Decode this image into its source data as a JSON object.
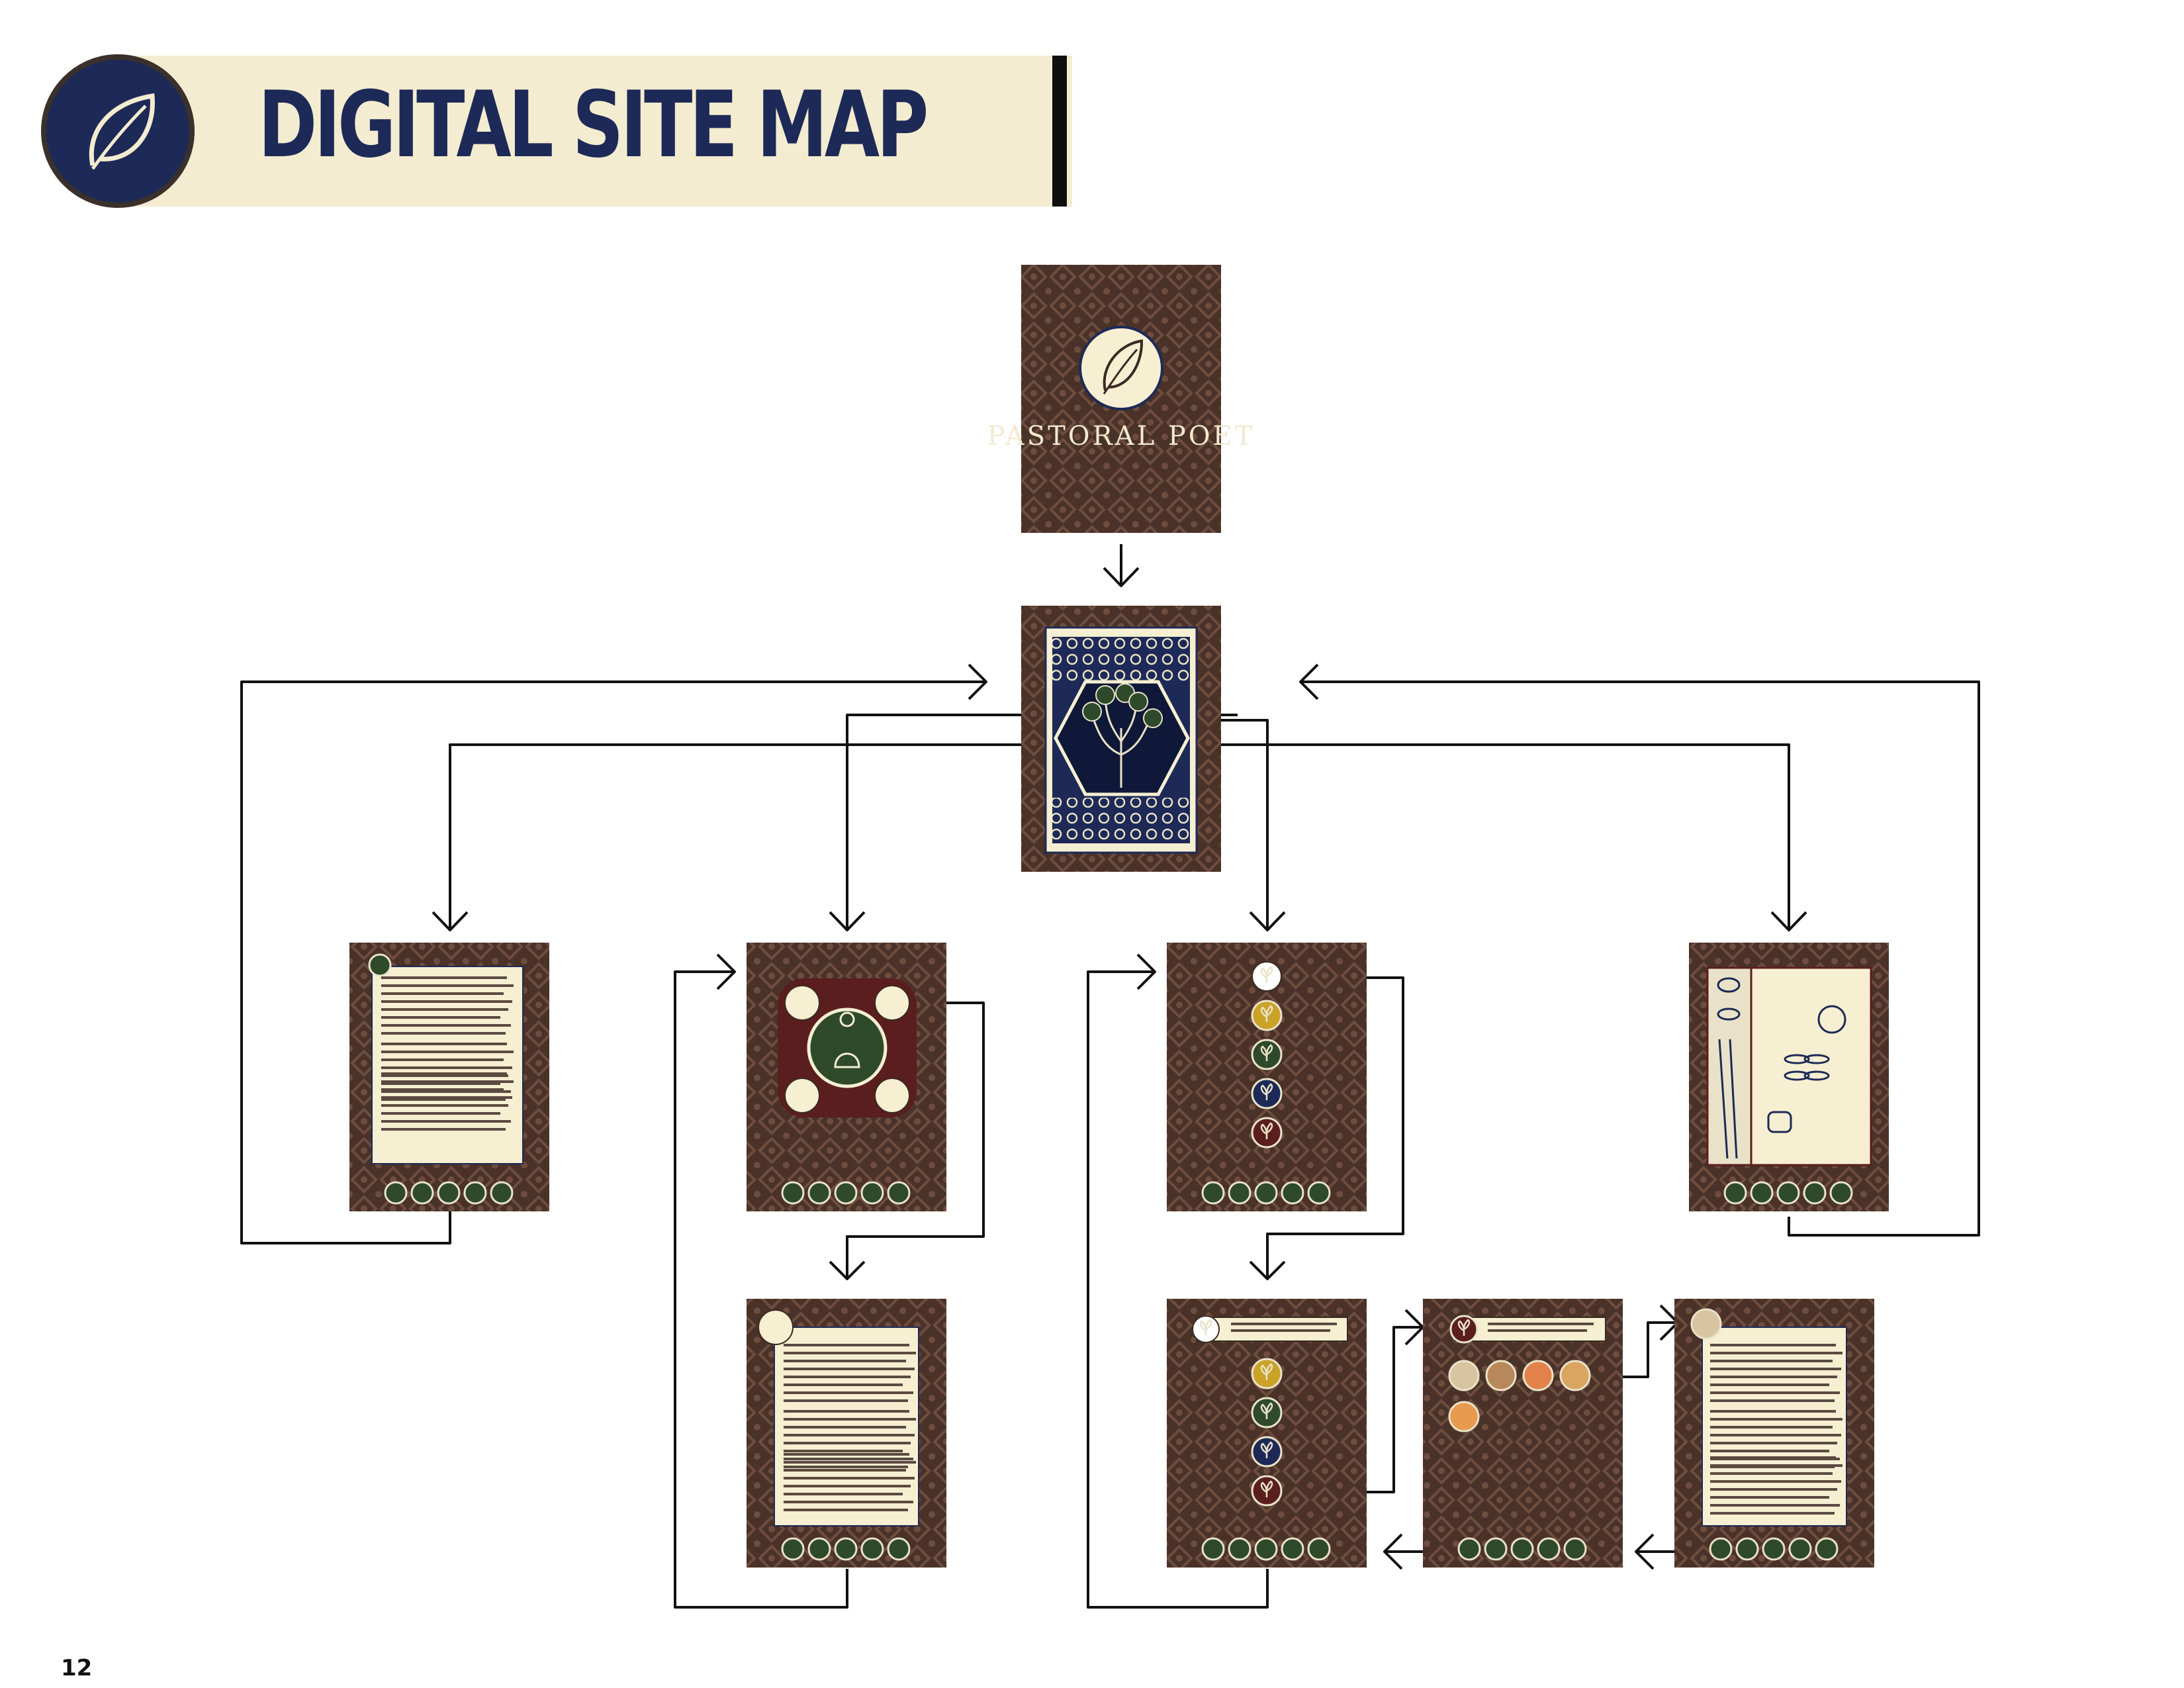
{
  "header": {
    "title": "DIGITAL SITE MAP",
    "logo_icon": "leaf-icon",
    "banner_color": "#f4ecd0",
    "accent_color": "#1d2a57"
  },
  "page_number": "12",
  "colors": {
    "screen_background": "#4a3229",
    "pattern": "#6b4a3c",
    "parchment": "#f6efd2",
    "navy": "#1d2a57",
    "green": "#2e4a2a",
    "gold": "#c9a227",
    "maroon": "#5a1e1e",
    "connector": "#111111"
  },
  "screens": {
    "splash": {
      "title": "PASTORAL POET",
      "icon": "leaf-icon"
    },
    "home": {
      "icon": "tree-of-life-icon"
    },
    "legend": {
      "icon": "leaf-icon"
    },
    "philosophy": {
      "icon": "buddha-icon"
    },
    "philosophy_detail": {
      "icon": "buddha-icon"
    },
    "tea_menu": {
      "icon": "leaf-icon"
    },
    "tea_selected": {
      "icon": "leaf-icon"
    },
    "tea_products": {
      "icon": "leaf-icon"
    },
    "tea_detail": {
      "icon": "bubble-tea-icon"
    },
    "teaware": {
      "icon": "teapot-icon"
    }
  }
}
